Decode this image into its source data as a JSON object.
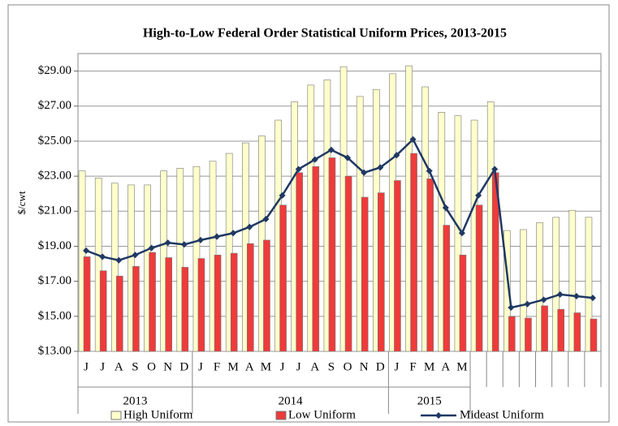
{
  "chart_data": {
    "type": "bar-line",
    "title": "High-to-Low Federal Order Statistical Uniform Prices, 2013-2015",
    "y_label": "$/cwt",
    "categories": [
      "J",
      "J",
      "A",
      "S",
      "O",
      "N",
      "D",
      "J",
      "F",
      "M",
      "A",
      "M",
      "J",
      "J",
      "A",
      "S",
      "O",
      "N",
      "D",
      "J",
      "F",
      "M",
      "A",
      "M",
      null,
      null,
      null,
      null,
      null,
      null,
      null,
      null
    ],
    "years": [
      "2013",
      "2013",
      "2013",
      "2013",
      "2013",
      "2013",
      "2013",
      "2014",
      "2014",
      "2014",
      "2014",
      "2014",
      "2014",
      "2014",
      "2014",
      "2014",
      "2014",
      "2014",
      "2014",
      "2015",
      "2015",
      "2015",
      "2015",
      "2015",
      null,
      null,
      null,
      null,
      null,
      null,
      null,
      null
    ],
    "ylim": [
      13,
      30
    ],
    "yticks": [
      {
        "value": 13,
        "label": "$13.00"
      },
      {
        "value": 15,
        "label": "$15.00"
      },
      {
        "value": 17,
        "label": "$17.00"
      },
      {
        "value": 19,
        "label": "$19.00"
      },
      {
        "value": 21,
        "label": "$21.00"
      },
      {
        "value": 23,
        "label": "$23.00"
      },
      {
        "value": 25,
        "label": "$25.00"
      },
      {
        "value": 27,
        "label": "$27.00"
      },
      {
        "value": 29,
        "label": "$29.00"
      }
    ],
    "grid": true,
    "legend": "bottom",
    "series": [
      {
        "name": "High Uniform",
        "kind": "bar",
        "color": "#ffffcc",
        "values": [
          23.3,
          22.9,
          22.6,
          22.5,
          22.5,
          23.3,
          23.45,
          23.55,
          23.85,
          24.3,
          24.9,
          25.3,
          26.2,
          27.25,
          28.2,
          28.5,
          29.25,
          27.55,
          27.95,
          28.85,
          29.3,
          28.1,
          26.65,
          26.45,
          26.2,
          27.25,
          19.9,
          19.95,
          20.35,
          20.65,
          21.05,
          20.65
        ]
      },
      {
        "name": "Low Uniform",
        "kind": "bar",
        "color": "#ee3b3b",
        "values": [
          18.4,
          17.6,
          17.3,
          17.85,
          18.65,
          18.35,
          17.8,
          18.3,
          18.5,
          18.6,
          19.15,
          19.35,
          21.35,
          23.2,
          23.55,
          24.05,
          23.0,
          21.8,
          22.05,
          22.75,
          24.3,
          22.85,
          20.2,
          18.5,
          21.35,
          23.2,
          15.0,
          14.9,
          15.6,
          15.4,
          15.2,
          14.85
        ]
      },
      {
        "name": "Mideast Uniform",
        "kind": "line",
        "color": "#1f3864",
        "values": [
          18.75,
          18.4,
          18.2,
          18.5,
          18.9,
          19.2,
          19.1,
          19.35,
          19.55,
          19.75,
          20.1,
          20.55,
          21.9,
          23.4,
          23.95,
          24.5,
          24.05,
          23.2,
          23.5,
          24.2,
          25.1,
          23.3,
          21.2,
          19.75,
          21.9,
          23.4,
          15.5,
          15.7,
          15.95,
          16.25,
          16.15,
          16.05
        ]
      }
    ]
  }
}
